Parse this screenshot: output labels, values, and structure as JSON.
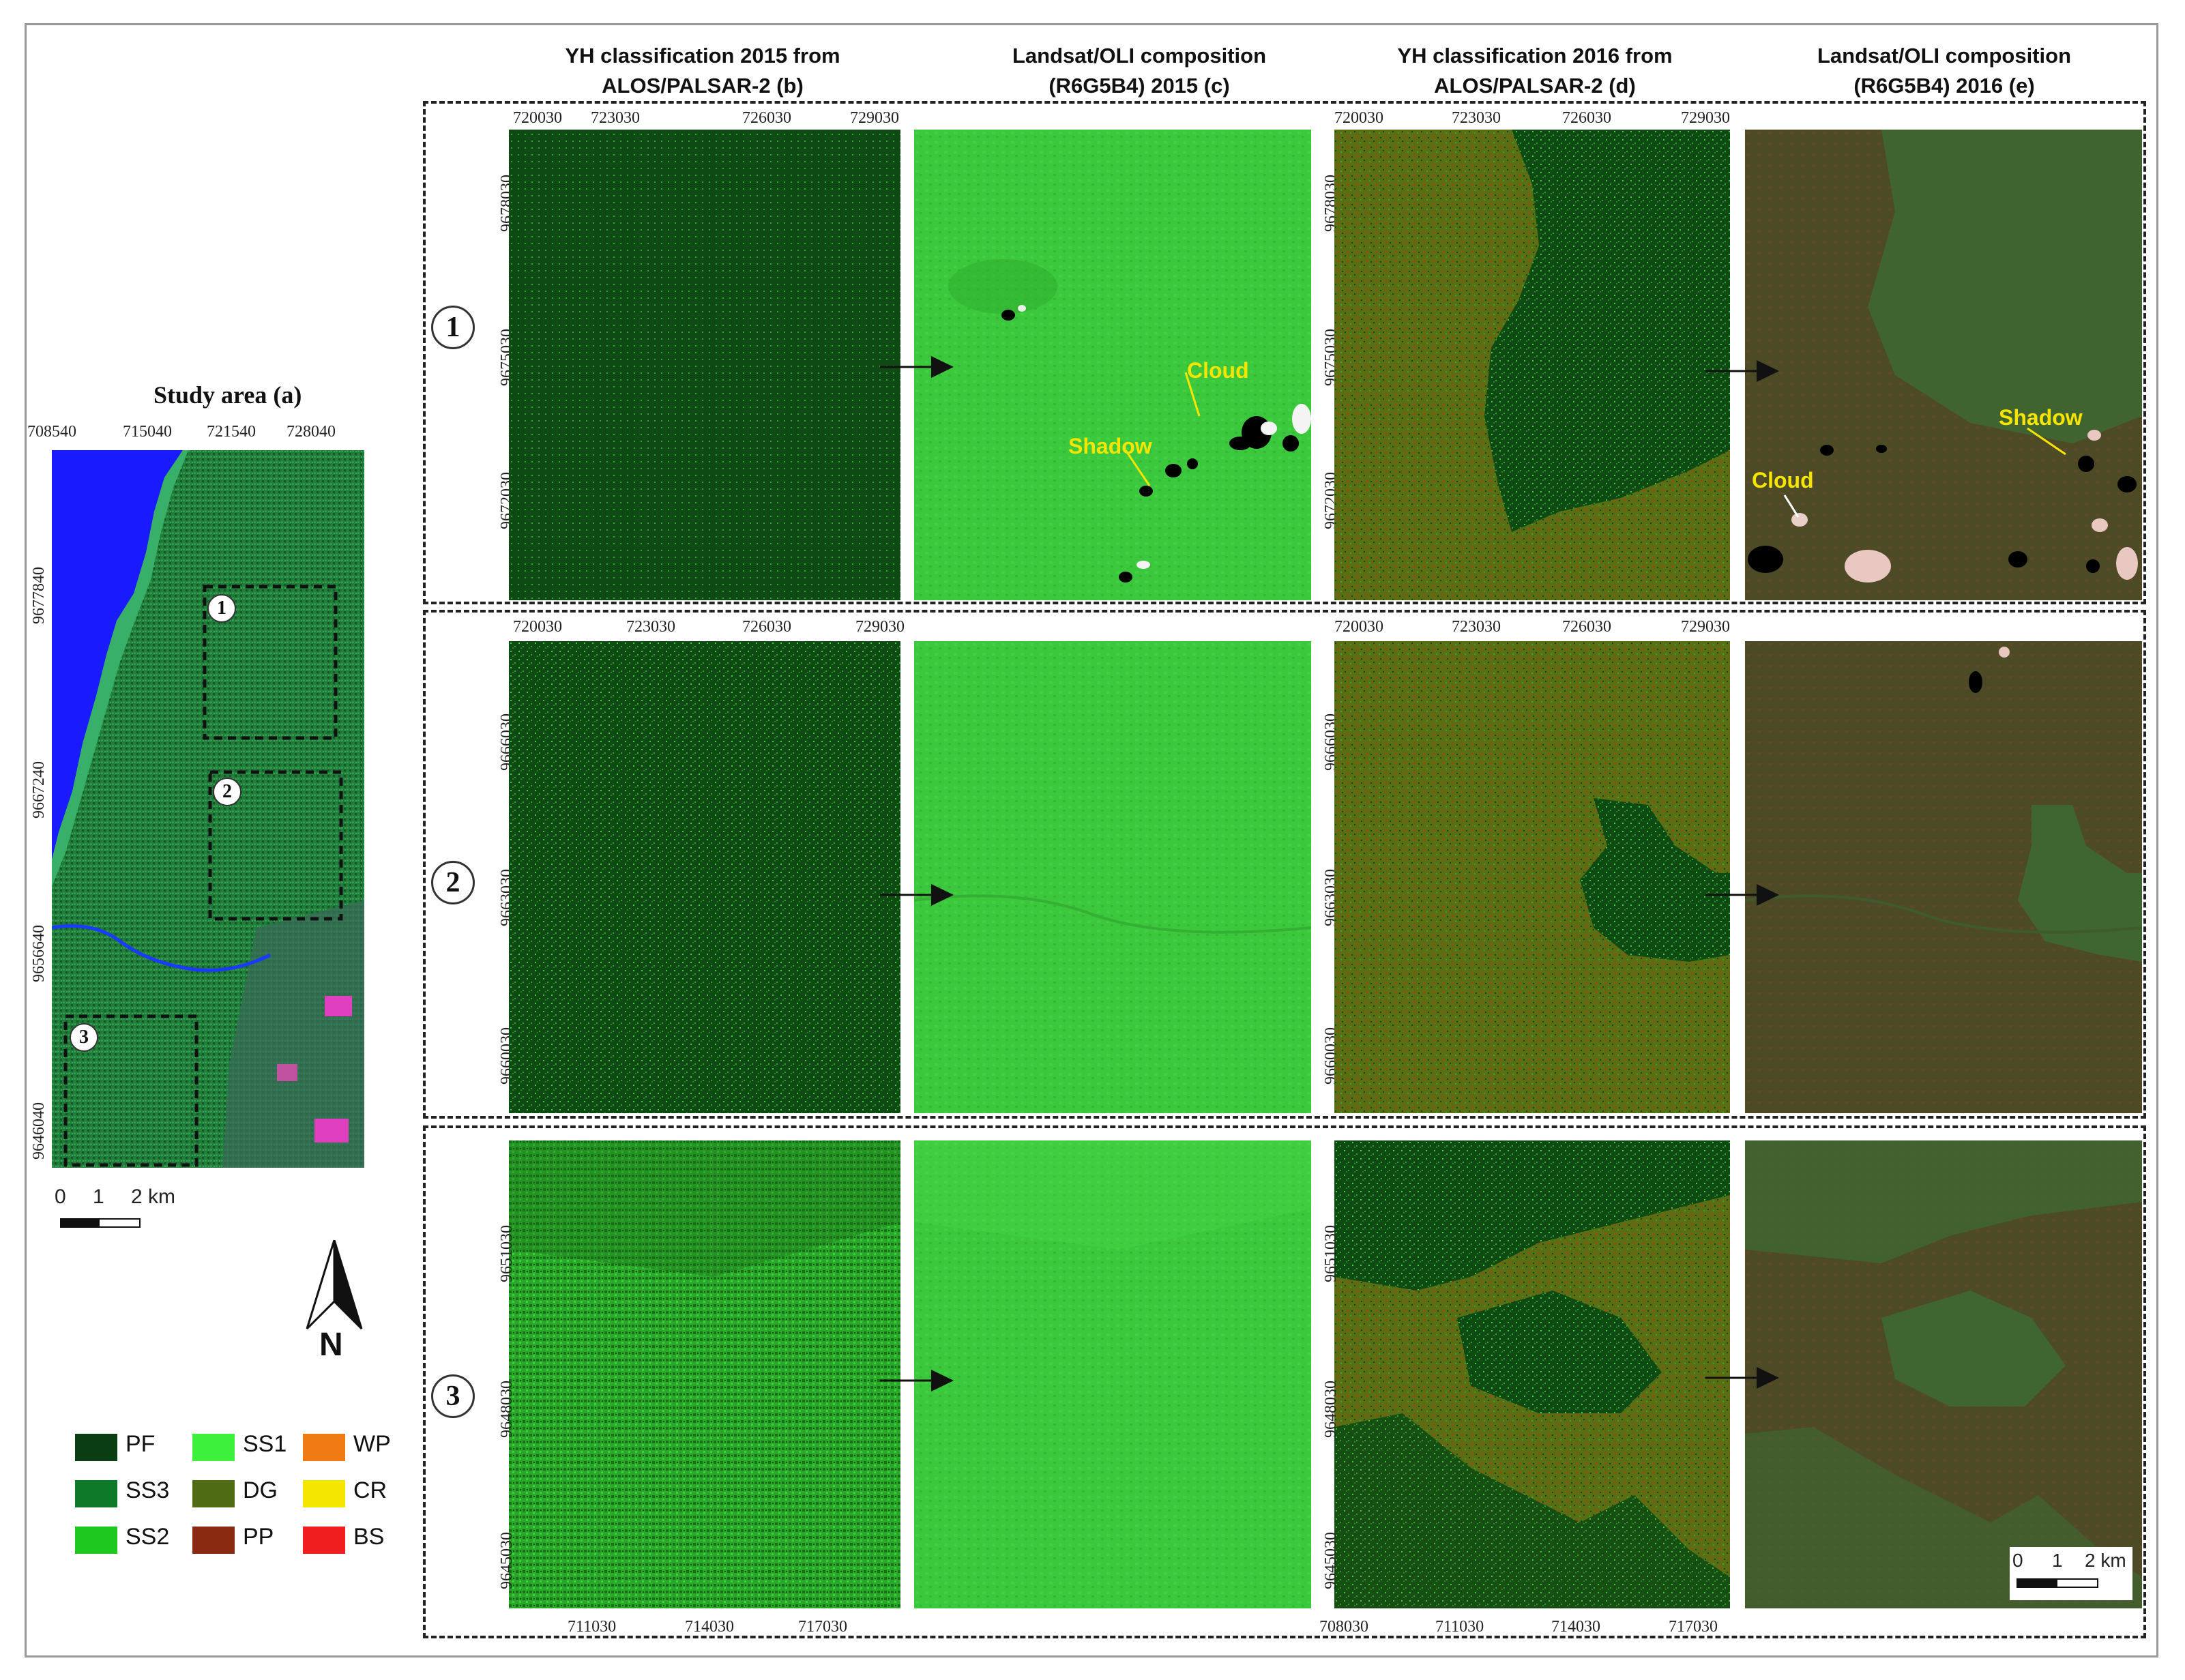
{
  "study_area": {
    "title": "Study area (a)",
    "x_ticks": [
      "708540",
      "715040",
      "721540",
      "728040"
    ],
    "y_ticks": [
      "9677840",
      "9667240",
      "9656640",
      "9646040"
    ],
    "boxes": [
      "1",
      "2",
      "3"
    ],
    "scale": {
      "zero": "0",
      "one": "1",
      "two": "2 km"
    },
    "north_label": "N"
  },
  "columns": [
    {
      "title_line1": "YH classification 2015 from",
      "title_line2": "ALOS/PALSAR-2 (b)"
    },
    {
      "title_line1": "Landsat/OLI composition",
      "title_line2": "(R6G5B4) 2015 (c)"
    },
    {
      "title_line1": "YH classification 2016 from",
      "title_line2": "ALOS/PALSAR-2 (d)"
    },
    {
      "title_line1": "Landsat/OLI composition",
      "title_line2": "(R6G5B4) 2016 (e)"
    }
  ],
  "rows": [
    {
      "label": "1",
      "x_ticks": [
        "720030",
        "723030",
        "726030",
        "729030"
      ],
      "y_ticks": [
        "9678030",
        "9675030",
        "9672030"
      ]
    },
    {
      "label": "2",
      "x_ticks": [
        "720030",
        "723030",
        "726030",
        "729030"
      ],
      "y_ticks": [
        "9666030",
        "9663030",
        "9660030"
      ]
    },
    {
      "label": "3",
      "x_ticks_b": [
        "711030",
        "714030",
        "717030"
      ],
      "x_ticks_d": [
        "708030",
        "711030",
        "714030",
        "717030"
      ],
      "y_ticks": [
        "9651030",
        "9648030",
        "9645030"
      ]
    }
  ],
  "annotations": {
    "c1_cloud": "Cloud",
    "c1_shadow": "Shadow",
    "e1_cloud": "Cloud",
    "e1_shadow": "Shadow"
  },
  "panel_scale": {
    "zero": "0",
    "one": "1",
    "two": "2 km"
  },
  "legend": [
    {
      "code": "PF",
      "color": "#0a3d12"
    },
    {
      "code": "SS1",
      "color": "#3cf03c"
    },
    {
      "code": "WP",
      "color": "#f07a14"
    },
    {
      "code": "SS3",
      "color": "#0d7a2a"
    },
    {
      "code": "DG",
      "color": "#4f6b14"
    },
    {
      "code": "CR",
      "color": "#f5e600"
    },
    {
      "code": "SS2",
      "color": "#1ec81e"
    },
    {
      "code": "PP",
      "color": "#8a2a10"
    },
    {
      "code": "BS",
      "color": "#f01e1e"
    }
  ],
  "colors": {
    "pf": "#0f4a14",
    "landsat2015": "#3cc83c",
    "dg": "#5c6e14",
    "landsat2016": "#4a4a24",
    "water": "#1a1aff"
  }
}
